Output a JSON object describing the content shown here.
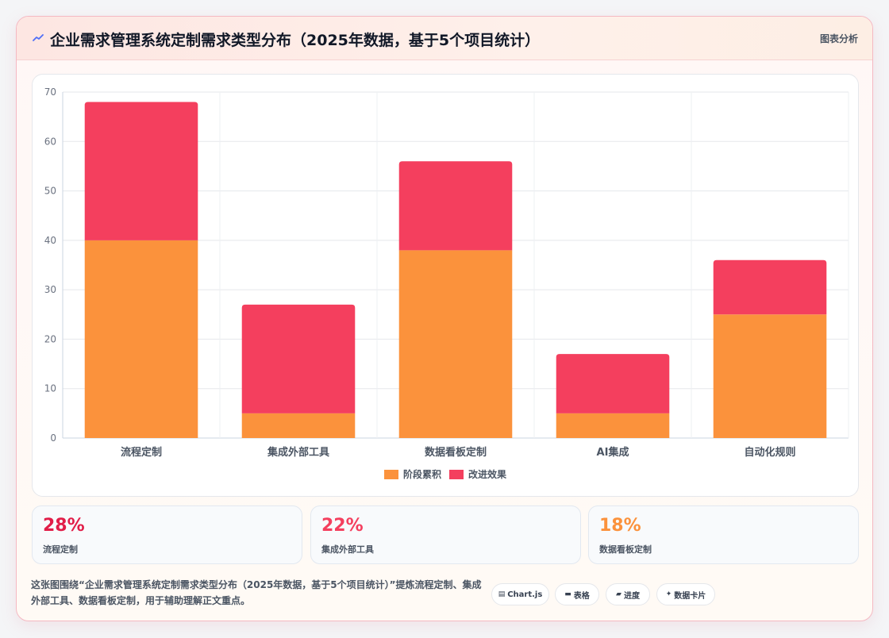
{
  "header": {
    "title": "企业需求管理系统定制需求类型分布（2025年数据，基于5个项目统计）",
    "tag": "图表分析"
  },
  "chart_data": {
    "type": "bar",
    "stacked": true,
    "categories": [
      "流程定制",
      "集成外部工具",
      "数据看板定制",
      "AI集成",
      "自动化规则"
    ],
    "series": [
      {
        "name": "阶段累积",
        "color": "#fb923c",
        "values": [
          40,
          5,
          38,
          5,
          25
        ]
      },
      {
        "name": "改进效果",
        "color": "#f43f5e",
        "values": [
          28,
          22,
          18,
          12,
          11
        ]
      }
    ],
    "ylim": [
      0,
      70
    ],
    "yticks": [
      0,
      10,
      20,
      30,
      40,
      50,
      60,
      70
    ],
    "grid": true,
    "legend": "bottom"
  },
  "stats": [
    {
      "value": "28%",
      "label": "流程定制",
      "color": "#e11d48"
    },
    {
      "value": "22%",
      "label": "集成外部工具",
      "color": "#f43f5e"
    },
    {
      "value": "18%",
      "label": "数据看板定制",
      "color": "#fb923c"
    }
  ],
  "footer": {
    "note": "这张图围绕“企业需求管理系统定制需求类型分布（2025年数据，基于5个项目统计）”提炼流程定制、集成外部工具、数据看板定制，用于辅助理解正文重点。",
    "pills": [
      {
        "icon": "▤",
        "icon_name": "chart-icon",
        "label": "Chart.js"
      },
      {
        "icon": "▬",
        "icon_name": "table-icon",
        "label": "表格"
      },
      {
        "icon": "▰",
        "icon_name": "progress-icon",
        "label": "进度"
      },
      {
        "icon": "✦",
        "icon_name": "sparkle-icon",
        "label": "数据卡片"
      }
    ]
  }
}
